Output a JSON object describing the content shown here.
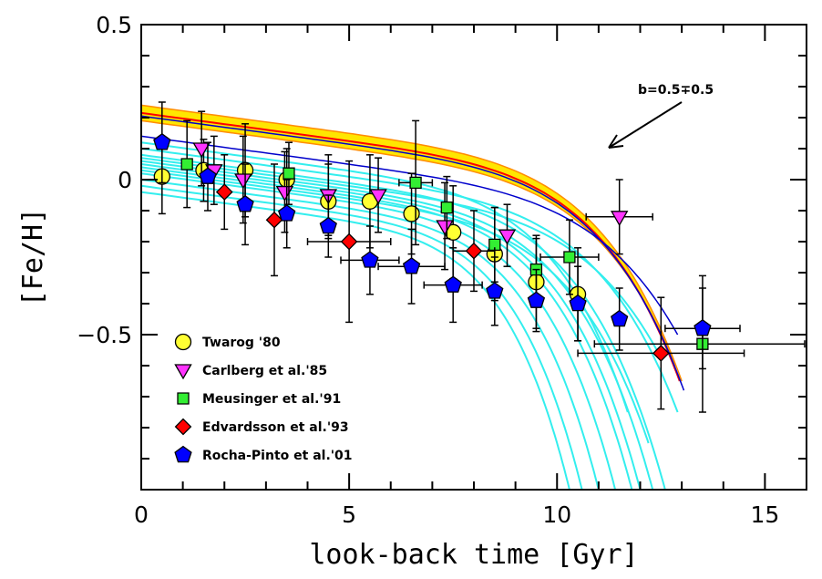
{
  "chart_data": {
    "type": "scatter",
    "title": "",
    "xlabel": "look-back time [Gyr]",
    "ylabel": "[Fe/H]",
    "xlim": [
      0,
      16
    ],
    "ylim": [
      -1.0,
      0.5
    ],
    "x_ticks": [
      0,
      5,
      10,
      15
    ],
    "x_tick_labels": [
      "0",
      "5",
      "10",
      "15"
    ],
    "y_ticks": [
      0.5,
      0,
      -0.5
    ],
    "y_tick_labels": [
      "0.5",
      "0",
      "−0.5"
    ],
    "x_minor_step": 1,
    "y_minor_step": 0.1,
    "grid": false,
    "legend_position": "bottom-left",
    "annotation": {
      "text": "b=0.5∓0.5",
      "points_to": [
        11.2,
        0.09
      ]
    },
    "series": [
      {
        "name": "Twarog '80",
        "marker": "circle",
        "color": "#ffff33",
        "points": [
          {
            "x": 0.5,
            "y": 0.01,
            "ey": 0.12
          },
          {
            "x": 1.5,
            "y": 0.03,
            "ey": 0.1
          },
          {
            "x": 2.5,
            "y": 0.03,
            "ey": 0.15
          },
          {
            "x": 3.5,
            "y": 0.0,
            "ey": 0.1
          },
          {
            "x": 4.5,
            "y": -0.07,
            "ey": 0.12
          },
          {
            "x": 5.5,
            "y": -0.07,
            "ey": 0.15
          },
          {
            "x": 6.5,
            "y": -0.11,
            "ey": 0.13
          },
          {
            "x": 7.5,
            "y": -0.17,
            "ey": 0.15
          },
          {
            "x": 8.5,
            "y": -0.24,
            "ey": 0.15
          },
          {
            "x": 9.5,
            "y": -0.33,
            "ey": 0.15
          },
          {
            "x": 10.5,
            "y": -0.37,
            "ey": 0.15
          }
        ]
      },
      {
        "name": "Carlberg et al.'85",
        "marker": "triangle-down",
        "color": "#ff33ff",
        "points": [
          {
            "x": 1.45,
            "y": 0.1,
            "ey": 0.12
          },
          {
            "x": 1.75,
            "y": 0.03,
            "ey": 0.11
          },
          {
            "x": 2.45,
            "y": 0.0,
            "ey": 0.14
          },
          {
            "x": 3.45,
            "y": -0.04,
            "ey": 0.13
          },
          {
            "x": 4.5,
            "y": -0.05,
            "ey": 0.13
          },
          {
            "x": 5.7,
            "y": -0.05,
            "ey": 0.12
          },
          {
            "x": 7.3,
            "y": -0.15,
            "ey": 0.14
          },
          {
            "x": 8.8,
            "y": -0.18,
            "ey": 0.1
          },
          {
            "x": 11.5,
            "y": -0.12,
            "ey": 0.12,
            "ex": 0.8
          }
        ]
      },
      {
        "name": "Meusinger et al.'91",
        "marker": "square",
        "color": "#33ee33",
        "points": [
          {
            "x": 1.1,
            "y": 0.05,
            "ey": 0.14
          },
          {
            "x": 3.55,
            "y": 0.02,
            "ey": 0.1
          },
          {
            "x": 6.6,
            "y": -0.01,
            "ey": 0.2,
            "ex": 0.4
          },
          {
            "x": 7.35,
            "y": -0.09,
            "ey": 0.1
          },
          {
            "x": 8.5,
            "y": -0.21,
            "ey": 0.12
          },
          {
            "x": 9.5,
            "y": -0.29,
            "ey": 0.1
          },
          {
            "x": 10.3,
            "y": -0.25,
            "ey": 0.12,
            "ex": 0.7
          },
          {
            "x": 13.5,
            "y": -0.53,
            "ey": 0.22,
            "ex": 2.6
          }
        ]
      },
      {
        "name": "Edvardsson et al.'93",
        "marker": "diamond",
        "color": "#ff0000",
        "points": [
          {
            "x": 2.0,
            "y": -0.04,
            "ey": 0.12
          },
          {
            "x": 3.2,
            "y": -0.13,
            "ey": 0.18
          },
          {
            "x": 5.0,
            "y": -0.2,
            "ey": 0.26,
            "ex": 1.0
          },
          {
            "x": 8.0,
            "y": -0.23,
            "ey": 0.13,
            "ex": 0.5
          },
          {
            "x": 12.5,
            "y": -0.56,
            "ey": 0.18,
            "ex": 2.0
          }
        ]
      },
      {
        "name": "Rocha-Pinto et al.'01",
        "marker": "pentagon",
        "color": "#0000ff",
        "points": [
          {
            "x": 0.5,
            "y": 0.12,
            "ey": 0.13
          },
          {
            "x": 1.6,
            "y": 0.01,
            "ey": 0.11
          },
          {
            "x": 2.5,
            "y": -0.08,
            "ey": 0.13
          },
          {
            "x": 3.5,
            "y": -0.11,
            "ey": 0.11
          },
          {
            "x": 4.5,
            "y": -0.15,
            "ey": 0.1
          },
          {
            "x": 5.5,
            "y": -0.26,
            "ey": 0.11,
            "ex": 0.7
          },
          {
            "x": 6.5,
            "y": -0.28,
            "ey": 0.12,
            "ex": 0.8
          },
          {
            "x": 7.5,
            "y": -0.34,
            "ey": 0.12,
            "ex": 0.7
          },
          {
            "x": 8.5,
            "y": -0.36,
            "ey": 0.11
          },
          {
            "x": 9.5,
            "y": -0.39,
            "ey": 0.1
          },
          {
            "x": 10.5,
            "y": -0.4,
            "ey": 0.12
          },
          {
            "x": 11.5,
            "y": -0.45,
            "ey": 0.1
          },
          {
            "x": 13.5,
            "y": -0.48,
            "ey": 0.13,
            "ex": 0.9
          }
        ]
      }
    ],
    "model_curves": {
      "band_color": "#ffe600",
      "band_edge_color": "#ff8c00",
      "central_color": "#ff0000",
      "outer_color": "#0000cc",
      "cyan_color": "#33eeee",
      "band_upper": {
        "y0": 0.24,
        "t_end": 13.0,
        "y_end": -0.65
      },
      "band_lower": {
        "y0": 0.19,
        "t_end": 12.85,
        "y_end": -0.6
      },
      "central": {
        "y0": 0.215,
        "t_end": 12.95,
        "y_end": -0.65
      },
      "blue_upper": {
        "y0": 0.205,
        "t_end": 13.05,
        "y_end": -0.68
      },
      "blue_lower": {
        "y0": 0.14,
        "t_end": 12.9,
        "y_end": -0.5
      },
      "cyan": [
        {
          "y0": 0.1,
          "t_end": 12.9,
          "y_end": -0.75
        },
        {
          "y0": 0.08,
          "t_end": 12.6,
          "y_end": -1.0
        },
        {
          "y0": 0.06,
          "t_end": 12.3,
          "y_end": -1.0
        },
        {
          "y0": 0.05,
          "t_end": 12.0,
          "y_end": -1.0
        },
        {
          "y0": 0.04,
          "t_end": 11.8,
          "y_end": -1.0
        },
        {
          "y0": 0.02,
          "t_end": 11.4,
          "y_end": -1.0
        },
        {
          "y0": 0.0,
          "t_end": 11.0,
          "y_end": -1.0
        },
        {
          "y0": -0.02,
          "t_end": 10.6,
          "y_end": -1.0
        },
        {
          "y0": -0.04,
          "t_end": 10.3,
          "y_end": -1.0
        },
        {
          "y0": 0.07,
          "t_end": 12.4,
          "y_end": -0.55
        },
        {
          "y0": 0.12,
          "t_end": 11.7,
          "y_end": -0.75
        },
        {
          "y0": 0.03,
          "t_end": 12.2,
          "y_end": -0.85
        }
      ]
    }
  }
}
